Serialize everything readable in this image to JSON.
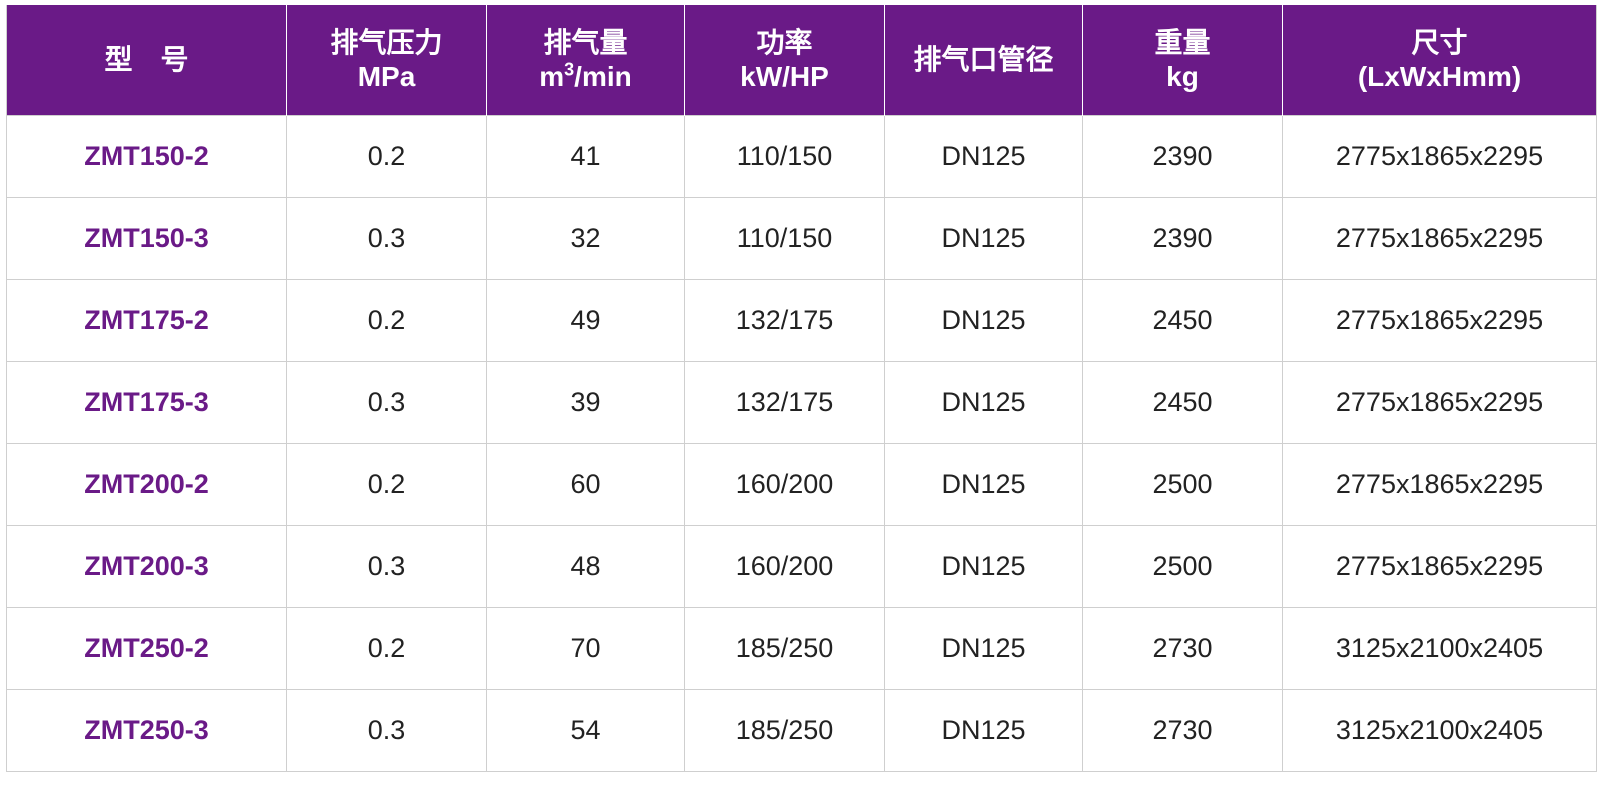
{
  "table": {
    "headers": {
      "model": "型　号",
      "pressure_line1": "排气压力",
      "pressure_line2": "MPa",
      "flow_line1": "排气量",
      "flow_unit_prefix": "m",
      "flow_unit_sup": "3",
      "flow_unit_suffix": "/min",
      "power_line1": "功率",
      "power_line2": "kW/HP",
      "outlet": "排气口管径",
      "weight_line1": "重量",
      "weight_line2": "kg",
      "size_line1": "尺寸",
      "size_line2": "(LxWxHmm)"
    },
    "rows": [
      {
        "model": "ZMT150-2",
        "pressure": "0.2",
        "flow": "41",
        "power": "110/150",
        "outlet": "DN125",
        "weight": "2390",
        "size": "2775x1865x2295"
      },
      {
        "model": "ZMT150-3",
        "pressure": "0.3",
        "flow": "32",
        "power": "110/150",
        "outlet": "DN125",
        "weight": "2390",
        "size": "2775x1865x2295"
      },
      {
        "model": "ZMT175-2",
        "pressure": "0.2",
        "flow": "49",
        "power": "132/175",
        "outlet": "DN125",
        "weight": "2450",
        "size": "2775x1865x2295"
      },
      {
        "model": "ZMT175-3",
        "pressure": "0.3",
        "flow": "39",
        "power": "132/175",
        "outlet": "DN125",
        "weight": "2450",
        "size": "2775x1865x2295"
      },
      {
        "model": "ZMT200-2",
        "pressure": "0.2",
        "flow": "60",
        "power": "160/200",
        "outlet": "DN125",
        "weight": "2500",
        "size": "2775x1865x2295"
      },
      {
        "model": "ZMT200-3",
        "pressure": "0.3",
        "flow": "48",
        "power": "160/200",
        "outlet": "DN125",
        "weight": "2500",
        "size": "2775x1865x2295"
      },
      {
        "model": "ZMT250-2",
        "pressure": "0.2",
        "flow": "70",
        "power": "185/250",
        "outlet": "DN125",
        "weight": "2730",
        "size": "3125x2100x2405"
      },
      {
        "model": "ZMT250-3",
        "pressure": "0.3",
        "flow": "54",
        "power": "185/250",
        "outlet": "DN125",
        "weight": "2730",
        "size": "3125x2100x2405"
      }
    ]
  },
  "colors": {
    "header_bg": "#6a1a87",
    "header_text": "#ffffff",
    "model_text": "#6a1a87",
    "body_text": "#222222",
    "grid": "#cfcfcf"
  }
}
